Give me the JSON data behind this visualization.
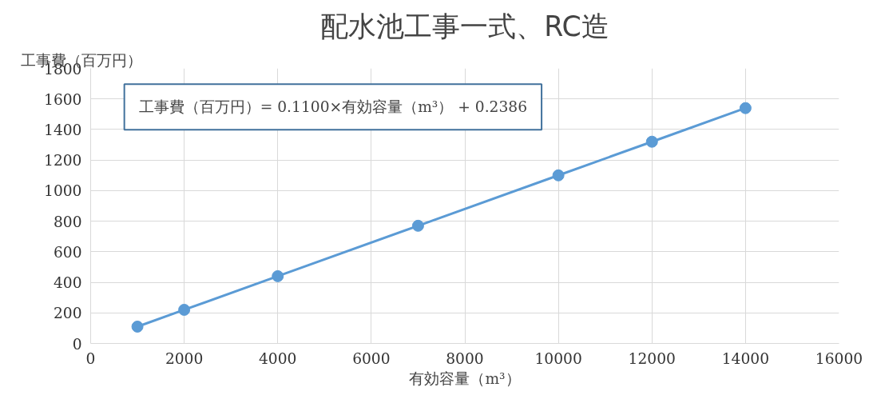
{
  "chart_data": {
    "type": "line",
    "title": "配水池工事一式、RC造",
    "xlabel": "有効容量（m³）",
    "ylabel": "工事費（百万円）",
    "x": [
      1000,
      2000,
      4000,
      7000,
      10000,
      12000,
      14000
    ],
    "series": [
      {
        "color": "#5b9bd5",
        "values": [
          110,
          220,
          440,
          770,
          1100,
          1320,
          1540
        ]
      }
    ],
    "xlim": [
      0,
      16000
    ],
    "xticks": [
      0,
      2000,
      4000,
      6000,
      8000,
      10000,
      12000,
      14000,
      16000
    ],
    "ylim": [
      0,
      1800
    ],
    "yticks": [
      0,
      200,
      400,
      600,
      800,
      1000,
      1200,
      1400,
      1600,
      1800
    ],
    "annotations": [
      "工事費（百万円）= 0.1100×有効容量（m³） + 0.2386"
    ],
    "grid": true,
    "marker": "circle",
    "line_style": "solid"
  }
}
